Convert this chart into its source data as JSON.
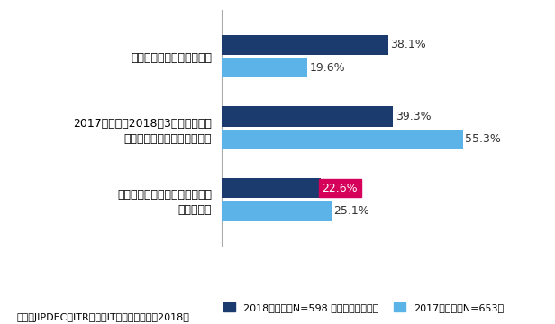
{
  "categories": [
    "すでに対応が完了している",
    "2017年度中（2018年3月）までには\n対応が完了する見込みである",
    "いつまでに対応が完了できるか\nわからない"
  ],
  "values_2018": [
    38.1,
    39.3,
    22.6
  ],
  "values_2017": [
    19.6,
    55.3,
    25.1
  ],
  "color_2018": "#1b3a6e",
  "color_2017": "#5bb3e8",
  "highlight_color": "#d4005a",
  "highlight_index": 2,
  "legend_2018": "2018年調査（N=598 不明回答を除く）",
  "legend_2017": "2017年調査（N=653）",
  "source": "出典：JIPDEC／ITR「企業IT利活用動向調査2018」",
  "xlim": [
    0,
    65
  ],
  "bar_height": 0.28,
  "background_color": "#ffffff",
  "label_fontsize": 9,
  "legend_fontsize": 8,
  "source_fontsize": 8,
  "ytick_fontsize": 9
}
